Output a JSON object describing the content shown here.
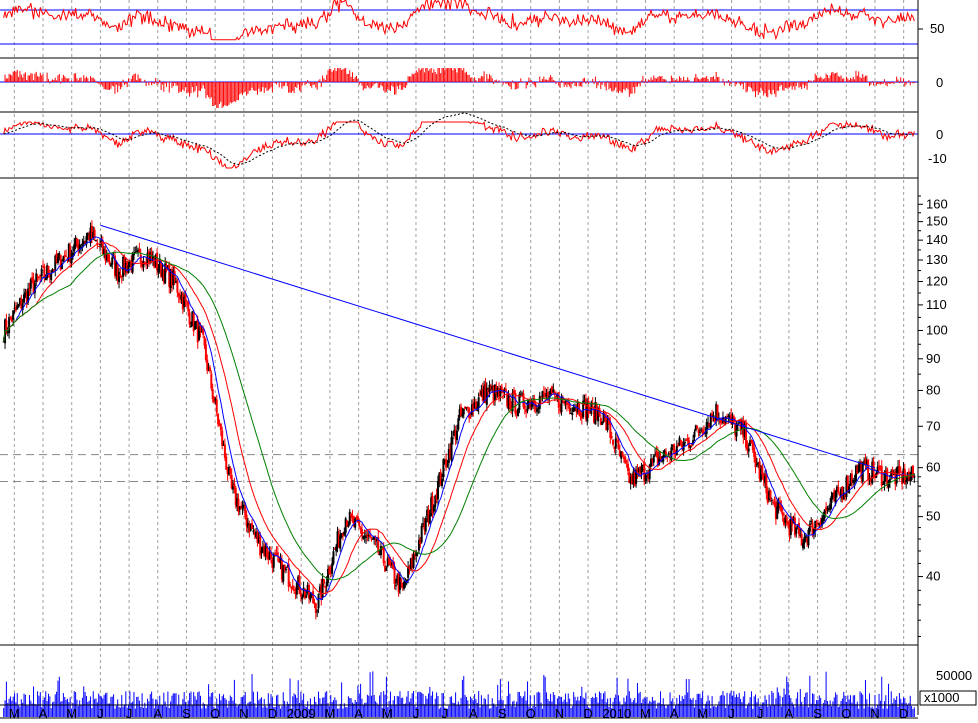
{
  "chart_data": {
    "type": "candlestick",
    "title": "",
    "price_scale": "log",
    "price_ticks": [
      40,
      50,
      60,
      70,
      80,
      90,
      100,
      110,
      120,
      130,
      140,
      150,
      160
    ],
    "price_range": [
      31,
      170
    ],
    "reference_levels": [
      63,
      57
    ],
    "months": [
      "M",
      "A",
      "M",
      "J",
      "J",
      "A",
      "S",
      "O",
      "N",
      "D",
      "2009",
      "M",
      "A",
      "M",
      "J",
      "J",
      "A",
      "S",
      "O",
      "N",
      "D",
      "2010",
      "M",
      "A",
      "M",
      "J",
      "J",
      "A",
      "S",
      "O",
      "N",
      "D"
    ],
    "closes": [
      100,
      118,
      130,
      143,
      125,
      133,
      120,
      95,
      55,
      45,
      40,
      36,
      50,
      45,
      38,
      52,
      72,
      80,
      76,
      78,
      76,
      73,
      57,
      62,
      66,
      74,
      68,
      52,
      46,
      52,
      60,
      58
    ],
    "trendline": {
      "from": {
        "month": "J",
        "value": 148
      },
      "to": {
        "month": "N",
        "value": 60
      }
    },
    "moving_averages": [
      {
        "color": "#0000ff",
        "period": "short"
      },
      {
        "color": "#ff0000",
        "period": "medium"
      },
      {
        "color": "#008000",
        "period": "long"
      }
    ],
    "panels": [
      {
        "name": "oscillator_1",
        "ticks": [
          50
        ],
        "color": "#ff0000"
      },
      {
        "name": "oscillator_2",
        "ticks": [
          0
        ],
        "color": "#ff0000",
        "style": "histogram"
      },
      {
        "name": "oscillator_3",
        "ticks": [
          0,
          -10
        ],
        "color": "#ff0000"
      },
      {
        "name": "volume",
        "ticks": [
          50000
        ],
        "unit": "x1000",
        "color": "#0000ff"
      }
    ]
  },
  "colors": {
    "up": "#000000",
    "down": "#ff0000",
    "grid": "#a0a0a0",
    "trend": "#0000ff"
  }
}
